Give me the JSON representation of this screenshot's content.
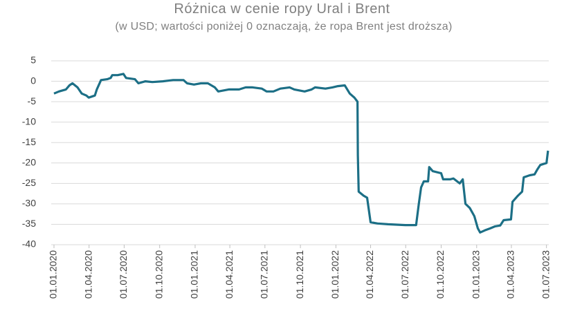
{
  "chart_data": {
    "type": "line",
    "title": "Różnica w cenie ropy Ural i Brent",
    "subtitle": "(w USD; wartości poniżej 0 oznaczają, że ropa Brent jest droższa)",
    "x": [
      "01.01.2020",
      "14.01.2020",
      "01.02.2020",
      "10.02.2020",
      "18.02.2020",
      "02.03.2020",
      "13.03.2020",
      "25.03.2020",
      "31.03.2020",
      "16.04.2020",
      "21.04.2020",
      "02.05.2020",
      "18.05.2020",
      "27.05.2020",
      "31.05.2020",
      "14.06.2020",
      "29.06.2020",
      "06.07.2020",
      "29.07.2020",
      "07.08.2020",
      "25.08.2020",
      "12.09.2020",
      "09.10.2020",
      "05.11.2020",
      "02.12.2020",
      "11.12.2020",
      "29.12.2020",
      "16.01.2021",
      "03.02.2021",
      "21.02.2021",
      "02.03.2021",
      "29.03.2021",
      "25.04.2021",
      "12.05.2021",
      "30.05.2021",
      "23.06.2021",
      "05.07.2021",
      "23.07.2021",
      "10.08.2021",
      "03.09.2021",
      "15.09.2021",
      "12.10.2021",
      "30.10.2021",
      "08.11.2021",
      "05.12.2021",
      "23.12.2021",
      "06.01.2022",
      "24.01.2022",
      "06.02.2022",
      "18.02.2022",
      "26.02.2022",
      "27.02.2022",
      "01.03.2022",
      "14.03.2022",
      "23.03.2022",
      "01.04.2022",
      "19.04.2022",
      "16.05.2022",
      "30.06.2022",
      "28.07.2022",
      "04.08.2022",
      "10.08.2022",
      "17.08.2022",
      "28.08.2022",
      "31.08.2022",
      "09.09.2022",
      "01.10.2022",
      "06.10.2022",
      "24.10.2022",
      "02.11.2022",
      "18.11.2022",
      "26.11.2022",
      "03.12.2022",
      "14.12.2022",
      "26.12.2022",
      "04.01.2023",
      "10.01.2023",
      "22.01.2023",
      "05.02.2023",
      "18.02.2023",
      "03.03.2023",
      "12.03.2023",
      "31.03.2023",
      "04.04.2023",
      "18.04.2023",
      "29.04.2023",
      "03.05.2023",
      "19.05.2023",
      "31.05.2023",
      "08.06.2023",
      "15.06.2023",
      "01.07.2023",
      "05.07.2023"
    ],
    "series": [
      {
        "color": "#1c6f86",
        "values": [
          -3,
          -2.5,
          -2,
          -1,
          -0.5,
          -1.5,
          -3,
          -3.5,
          -4,
          -3.5,
          -2,
          0.3,
          0.5,
          0.8,
          1.5,
          1.5,
          1.8,
          0.8,
          0.5,
          -0.5,
          0,
          -0.2,
          0,
          0.3,
          0.3,
          -0.5,
          -0.8,
          -0.5,
          -0.5,
          -1.5,
          -2.5,
          -2,
          -2,
          -1.5,
          -1.5,
          -1.8,
          -2.5,
          -2.5,
          -1.8,
          -1.5,
          -2,
          -2.5,
          -2,
          -1.5,
          -1.8,
          -1.5,
          -1.2,
          -1,
          -3,
          -4,
          -5,
          -18,
          -27,
          -28,
          -28.5,
          -34.5,
          -34.8,
          -35,
          -35.2,
          -35.2,
          -30,
          -26,
          -24.5,
          -24.5,
          -21,
          -22,
          -22.5,
          -24,
          -24,
          -23.8,
          -25,
          -24,
          -30,
          -31,
          -33,
          -36,
          -37,
          -36.5,
          -36,
          -35.5,
          -35.3,
          -34,
          -33.8,
          -29.5,
          -28,
          -27,
          -23.5,
          -23,
          -22.8,
          -21.5,
          -20.5,
          -20,
          -17
        ]
      }
    ],
    "xlim": [
      "01.01.2020",
      "07.07.2023"
    ],
    "xticks": [
      "01.01.2020",
      "01.04.2020",
      "01.07.2020",
      "01.10.2020",
      "01.01.2021",
      "01.04.2021",
      "01.07.2021",
      "01.10.2021",
      "01.01.2022",
      "01.04.2022",
      "01.07.2022",
      "01.10.2022",
      "01.01.2023",
      "01.04.2023",
      "01.07.2023"
    ],
    "ylim": [
      -40,
      5
    ],
    "yticks": [
      5,
      0,
      -5,
      -10,
      -15,
      -20,
      -25,
      -30,
      -35,
      -40
    ],
    "grid": true
  }
}
